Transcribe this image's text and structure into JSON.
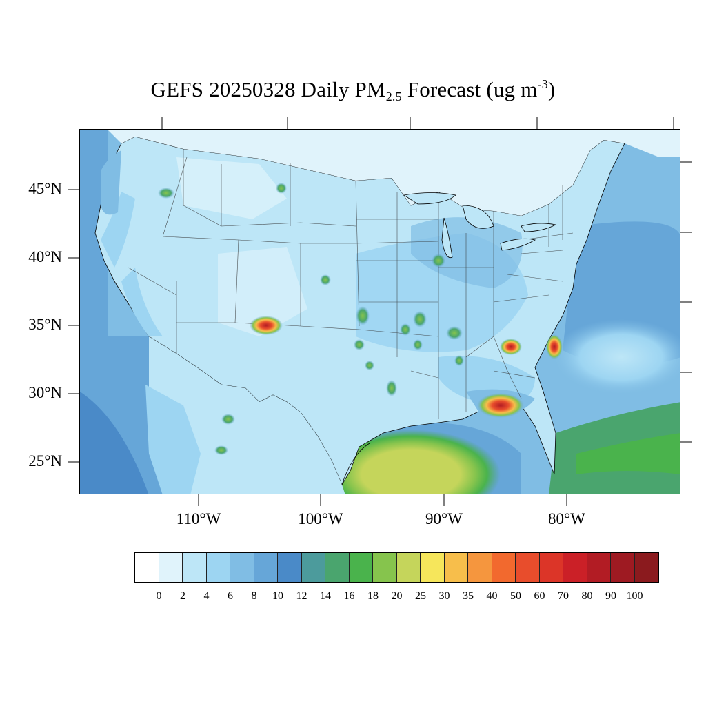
{
  "title": {
    "main": "GEFS 20250328 Daily PM",
    "sub": "2.5",
    "rest": " Forecast (ug m",
    "sup": "-3",
    "close": ")"
  },
  "latitude_labels": [
    "45°N",
    "40°N",
    "35°N",
    "30°N",
    "25°N"
  ],
  "longitude_labels": [
    "110°W",
    "100°W",
    "90°W",
    "80°W"
  ],
  "colorbar": {
    "colors": [
      "#ffffff",
      "#e0f3fb",
      "#bde6f7",
      "#9dd5f2",
      "#80bde4",
      "#66a6d8",
      "#4a8ac8",
      "#4c9b9c",
      "#4aa56e",
      "#4ab34c",
      "#86c44d",
      "#c5d55b",
      "#f6e65b",
      "#f7be4b",
      "#f5963e",
      "#f2692e",
      "#e84d2c",
      "#dc3528",
      "#cb2027",
      "#b21c24",
      "#9e1a22",
      "#8b1a1e"
    ],
    "labels": [
      "0",
      "2",
      "4",
      "6",
      "8",
      "10",
      "12",
      "14",
      "16",
      "18",
      "20",
      "25",
      "30",
      "35",
      "40",
      "50",
      "60",
      "70",
      "80",
      "90",
      "100"
    ]
  }
}
